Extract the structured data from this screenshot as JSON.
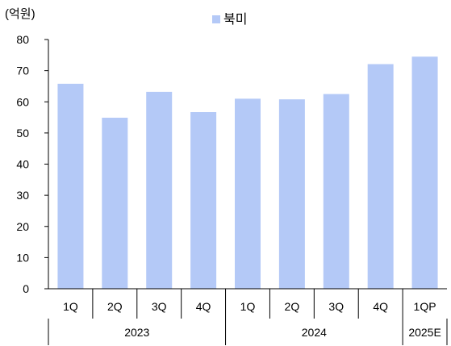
{
  "chart_data": {
    "type": "bar",
    "ylabel": "(억원)",
    "ylim": [
      0,
      80
    ],
    "yticks": [
      0,
      10,
      20,
      30,
      40,
      50,
      60,
      70,
      80
    ],
    "categories": [
      "1Q",
      "2Q",
      "3Q",
      "4Q",
      "1Q",
      "2Q",
      "3Q",
      "4Q",
      "1QP"
    ],
    "groups": [
      {
        "label": "2023",
        "count": 4
      },
      {
        "label": "2024",
        "count": 4
      },
      {
        "label": "2025E",
        "count": 1
      }
    ],
    "series": [
      {
        "name": "북미",
        "color": "#b4c9f7",
        "values": [
          65.8,
          54.9,
          63.2,
          56.7,
          61.0,
          60.8,
          62.5,
          72.1,
          74.5
        ]
      }
    ],
    "legend_position": "top-center",
    "grid": false
  }
}
